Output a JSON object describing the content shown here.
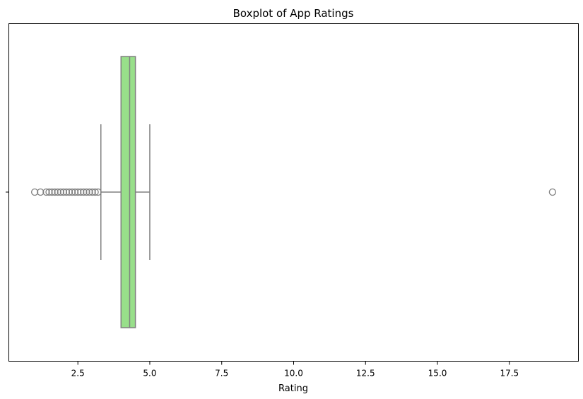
{
  "chart_data": {
    "type": "boxplot",
    "orientation": "horizontal",
    "title": "Boxplot of App Ratings",
    "xlabel": "Rating",
    "ylabel": "",
    "xlim": [
      0.1,
      19.9
    ],
    "xticks": [
      2.5,
      5.0,
      7.5,
      10.0,
      12.5,
      15.0,
      17.5
    ],
    "xtick_labels": [
      "2.5",
      "5.0",
      "7.5",
      "10.0",
      "12.5",
      "15.0",
      "17.5"
    ],
    "grid": false,
    "box": {
      "q1": 4.0,
      "median": 4.3,
      "q3": 4.5,
      "whisker_low": 3.3,
      "whisker_high": 5.0,
      "fill_color": "#98df8a",
      "line_color": "#808080"
    },
    "outliers": [
      1.0,
      1.2,
      1.4,
      1.5,
      1.6,
      1.7,
      1.8,
      1.9,
      2.0,
      2.1,
      2.2,
      2.3,
      2.4,
      2.5,
      2.6,
      2.7,
      2.8,
      2.9,
      3.0,
      3.1,
      3.2,
      19.0
    ]
  }
}
